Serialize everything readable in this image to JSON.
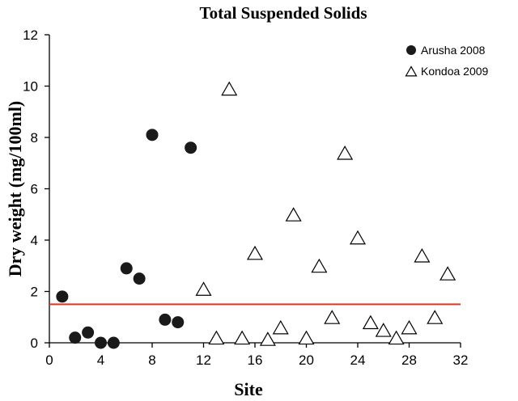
{
  "chart_data": {
    "type": "scatter",
    "title": "Total Suspended Solids",
    "xlabel": "Site",
    "ylabel": "Dry weight (mg/100ml)",
    "xlim": [
      0,
      32
    ],
    "ylim": [
      0,
      12
    ],
    "xticks": [
      0,
      4,
      8,
      12,
      16,
      20,
      24,
      28,
      32
    ],
    "yticks": [
      0,
      2,
      4,
      6,
      8,
      10,
      12
    ],
    "legend_position": "top-right",
    "reference_line": {
      "y": 1.5,
      "color": "#e8321e"
    },
    "series": [
      {
        "name": "Arusha 2008",
        "marker": "filled-circle",
        "color": "#1a1a1a",
        "points": [
          {
            "x": 1,
            "y": 1.8
          },
          {
            "x": 2,
            "y": 0.2
          },
          {
            "x": 3,
            "y": 0.4
          },
          {
            "x": 4,
            "y": 0.0
          },
          {
            "x": 5,
            "y": 0.0
          },
          {
            "x": 6,
            "y": 2.9
          },
          {
            "x": 7,
            "y": 2.5
          },
          {
            "x": 8,
            "y": 8.1
          },
          {
            "x": 9,
            "y": 0.9
          },
          {
            "x": 10,
            "y": 0.8
          },
          {
            "x": 11,
            "y": 7.6
          }
        ]
      },
      {
        "name": "Kondoa 2009",
        "marker": "open-triangle",
        "color": "#000000",
        "points": [
          {
            "x": 12,
            "y": 2.0
          },
          {
            "x": 13,
            "y": 0.1
          },
          {
            "x": 14,
            "y": 9.8
          },
          {
            "x": 15,
            "y": 0.1
          },
          {
            "x": 16,
            "y": 3.4
          },
          {
            "x": 17,
            "y": 0.05
          },
          {
            "x": 18,
            "y": 0.5
          },
          {
            "x": 19,
            "y": 4.9
          },
          {
            "x": 20,
            "y": 0.1
          },
          {
            "x": 21,
            "y": 2.9
          },
          {
            "x": 22,
            "y": 0.9
          },
          {
            "x": 23,
            "y": 7.3
          },
          {
            "x": 24,
            "y": 4.0
          },
          {
            "x": 25,
            "y": 0.7
          },
          {
            "x": 26,
            "y": 0.4
          },
          {
            "x": 27,
            "y": 0.1
          },
          {
            "x": 28,
            "y": 0.5
          },
          {
            "x": 29,
            "y": 3.3
          },
          {
            "x": 30,
            "y": 0.9
          },
          {
            "x": 31,
            "y": 2.6
          }
        ]
      }
    ]
  }
}
